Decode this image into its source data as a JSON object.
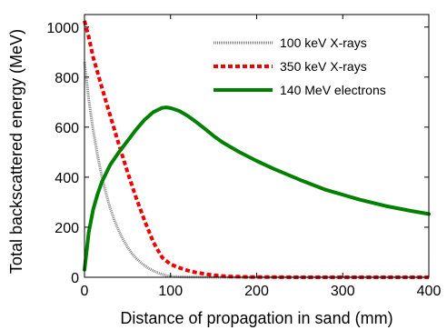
{
  "chart_data": {
    "type": "line",
    "xlabel": "Distance of propagation in sand (mm)",
    "ylabel": "Total backscattered energy (MeV)",
    "xlim": [
      0,
      400
    ],
    "ylim": [
      0,
      1050
    ],
    "xticks": [
      0,
      100,
      200,
      300,
      400
    ],
    "yticks": [
      0,
      200,
      400,
      600,
      800,
      1000
    ],
    "x_tick_labels": [
      "0",
      "100",
      "200",
      "300",
      "400"
    ],
    "y_tick_labels": [
      "0",
      "200",
      "400",
      "600",
      "800",
      "1000"
    ],
    "grid": false,
    "legend_position": "top-right",
    "series": [
      {
        "name": "100 keV X-rays",
        "color": "#808080",
        "style": "dotted",
        "x": [
          0,
          5,
          10,
          15,
          20,
          25,
          30,
          35,
          40,
          45,
          50,
          55,
          60,
          65,
          70,
          75,
          80,
          85,
          90,
          95,
          100,
          110,
          120,
          150,
          200,
          300,
          400
        ],
        "y": [
          860,
          710,
          590,
          490,
          405,
          335,
          275,
          225,
          185,
          150,
          120,
          96,
          76,
          60,
          46,
          35,
          26,
          18,
          12,
          7,
          4,
          2,
          1,
          0,
          0,
          0,
          0
        ]
      },
      {
        "name": "350 keV X-rays",
        "color": "#ee0000",
        "style": "dashed",
        "x": [
          0,
          5,
          10,
          20,
          30,
          40,
          50,
          60,
          70,
          80,
          90,
          100,
          110,
          120,
          130,
          140,
          150,
          160,
          170,
          180,
          190,
          200,
          250,
          300,
          350,
          400
        ],
        "y": [
          1025,
          960,
          880,
          760,
          645,
          530,
          420,
          318,
          225,
          140,
          80,
          52,
          38,
          27,
          19,
          13,
          8,
          5,
          3,
          2,
          1,
          1,
          0,
          0,
          0,
          0
        ]
      },
      {
        "name": "140 MeV electrons",
        "color": "#008000",
        "style": "solid",
        "x": [
          0,
          2,
          5,
          10,
          15,
          20,
          30,
          40,
          50,
          60,
          70,
          80,
          90,
          95,
          100,
          110,
          120,
          130,
          140,
          150,
          160,
          180,
          200,
          220,
          250,
          280,
          300,
          320,
          350,
          380,
          400
        ],
        "y": [
          30,
          90,
          180,
          270,
          330,
          380,
          450,
          500,
          545,
          590,
          630,
          660,
          677,
          679,
          676,
          665,
          645,
          620,
          593,
          565,
          540,
          500,
          465,
          433,
          390,
          350,
          330,
          310,
          285,
          265,
          253
        ]
      }
    ]
  }
}
